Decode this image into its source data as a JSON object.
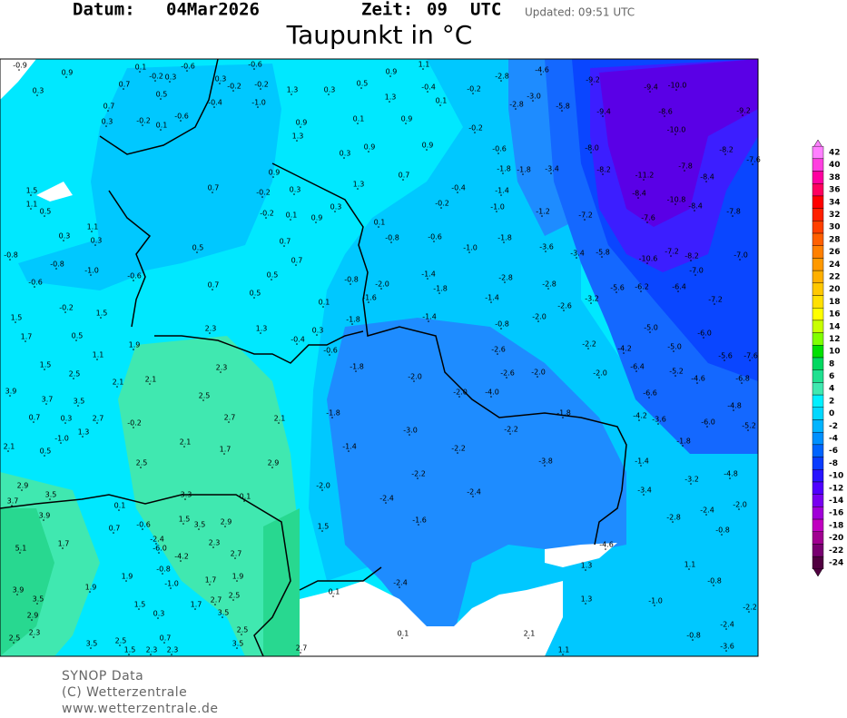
{
  "header": {
    "datum_label": "Datum:",
    "date": "04Mar2026",
    "zeit_label": "Zeit:",
    "time": "09",
    "timezone": "UTC",
    "updated": "Updated: 09:51 UTC",
    "title": "Taupunkt in °C"
  },
  "footer": {
    "line1": "SYNOP Data",
    "line2": "(C) Wetterzentrale",
    "line3": "www.wetterzentrale.de"
  },
  "legend": {
    "ticks": [
      42,
      40,
      38,
      36,
      34,
      32,
      30,
      28,
      26,
      24,
      22,
      20,
      18,
      16,
      14,
      12,
      10,
      8,
      6,
      4,
      2,
      0,
      -2,
      -4,
      -6,
      -8,
      -10,
      -12,
      -14,
      -16,
      -18,
      -20,
      -22,
      -24
    ],
    "colors": [
      "#ff80ff",
      "#ff40e0",
      "#ff00a0",
      "#ff0060",
      "#ff0000",
      "#ff2000",
      "#ff4000",
      "#ff6000",
      "#ff8000",
      "#ff9900",
      "#ffb000",
      "#ffc800",
      "#ffe000",
      "#ffff00",
      "#c8ff00",
      "#80ff00",
      "#00e000",
      "#00d860",
      "#20e090",
      "#40e8b0",
      "#00f0ff",
      "#00d8ff",
      "#00b4ff",
      "#0090ff",
      "#0064ff",
      "#0a3cff",
      "#2814ff",
      "#5000ff",
      "#7800f0",
      "#a000d8",
      "#c000c0",
      "#a00090",
      "#780070",
      "#500040"
    ]
  },
  "stations": [
    "-0.9",
    "0.9",
    "0.3",
    "0.1",
    "-0.2",
    "0.3",
    "-0.6",
    "0.5",
    "0.7",
    "0.7",
    "0.3",
    "-0.2",
    "0.1",
    "-0.6",
    "-0.4",
    "-0.2",
    "0.3",
    "-0.6",
    "-0.2",
    "-1.0",
    "1.3",
    "0.3",
    "0.5",
    "0.9",
    "1.1",
    "1.3",
    "-0.4",
    "0.1",
    "-0.2",
    "-2.8",
    "-4.6",
    "-3.0",
    "-2.8",
    "-5.8",
    "-9.2",
    "-9.4",
    "-10.0",
    "-9.2",
    "-9.4",
    "-8.6",
    "-10.0",
    "-8.0",
    "-8.2",
    "-7.8",
    "-8.4",
    "-7.6",
    "-8.2",
    "-11.2",
    "-8.4",
    "-10.8",
    "-8.4",
    "-7.8",
    "-7.6",
    "-7.2",
    "-1.2",
    "-1.0",
    "-0.2",
    "-0.4",
    "-1.4",
    "-1.8",
    "-1.8",
    "-3.4",
    "-0.6",
    "-0.2",
    "0.9",
    "0.9",
    "0.1",
    "0.7",
    "0.3",
    "0.9",
    "0.9",
    "1.3",
    "0.9",
    "0.3",
    "1.3",
    "0.3",
    "0.9",
    "0.1",
    "-0.2",
    "-0.2",
    "0.1",
    "-0.8",
    "-0.6",
    "-1.0",
    "-1.8",
    "-3.6",
    "-3.4",
    "-5.8",
    "-10.6",
    "-7.2",
    "-8.2",
    "-7.0",
    "-7.0",
    "-6.4",
    "-7.2",
    "-6.2",
    "-5.6",
    "-3.2",
    "-2.6",
    "-2.8",
    "-2.8",
    "-1.4",
    "-1.4",
    "-1.8",
    "-2.0",
    "-0.8",
    "-1.6",
    "0.1",
    "-1.8",
    "-1.4",
    "-0.8",
    "-2.0",
    "-5.0",
    "-6.0",
    "-2.2",
    "-4.2",
    "-5.0",
    "-5.6",
    "-7.6",
    "-6.4",
    "-5.2",
    "-4.6",
    "-6.8",
    "-6.6",
    "-4.8",
    "-4.2",
    "-3.6",
    "-6.0",
    "-5.2",
    "-1.8",
    "-1.8",
    "-2.6",
    "-2.6",
    "-2.0",
    "-2.0",
    "-2.0",
    "-4.0",
    "-2.0",
    "-1.8",
    "-0.6",
    "-0.4",
    "0.3",
    "-1.8",
    "-3.0",
    "-2.2",
    "-2.2",
    "-1.4",
    "-3.8",
    "-1.4",
    "-2.2",
    "-2.4",
    "-3.4",
    "-3.2",
    "-4.8",
    "-2.0",
    "-2.4",
    "-1.6",
    "-2.8",
    "-2.4",
    "-2.0",
    "-0.8",
    "-4.6",
    "1.3",
    "1.1",
    "-0.8",
    "1.3",
    "-1.0",
    "-2.2",
    "-2.4",
    "-0.8",
    "-3.6",
    "2.1",
    "1.1",
    "0.1",
    "-2.4",
    "0.1",
    "1.5",
    "1.5",
    "1.1",
    "0.5",
    "0.3",
    "1.1",
    "0.3",
    "-0.8",
    "-0.8",
    "-1.0",
    "-0.6",
    "-0.6",
    "-0.2",
    "1.5",
    "1.5",
    "1.7",
    "0.5",
    "1.1",
    "1.5",
    "2.5",
    "2.1",
    "3.9",
    "3.7",
    "3.5",
    "0.7",
    "0.3",
    "2.7",
    "1.3",
    "-0.2",
    "-1.0",
    "2.1",
    "0.5",
    "2.5",
    "2.9",
    "3.5",
    "3.7",
    "3.9",
    "1.7",
    "5.1",
    "3.9",
    "3.5",
    "2.9",
    "2.5",
    "2.3",
    "3.5",
    "1.5",
    "2.3",
    "2.3",
    "0.7",
    "0.5",
    "0.7",
    "0.5",
    "0.5",
    "0.7",
    "0.7",
    "2.3",
    "1.3",
    "1.9",
    "2.1",
    "2.3",
    "2.5",
    "2.7",
    "2.1",
    "2.1",
    "1.7",
    "2.9",
    "3.3",
    "0.1",
    "2.9",
    "1.5",
    "3.5",
    "2.3",
    "2.7",
    "1.9",
    "1.7",
    "2.5",
    "2.7",
    "3.5",
    "2.5",
    "3.5",
    "2.7",
    "-0.6",
    "0.7",
    "0.1",
    "-2.4",
    "-6.0",
    "-4.2",
    "-0.8",
    "-1.0",
    "1.9",
    "1.5",
    "1.9",
    "1.7",
    "0.3",
    "0.7",
    "2.5"
  ]
}
